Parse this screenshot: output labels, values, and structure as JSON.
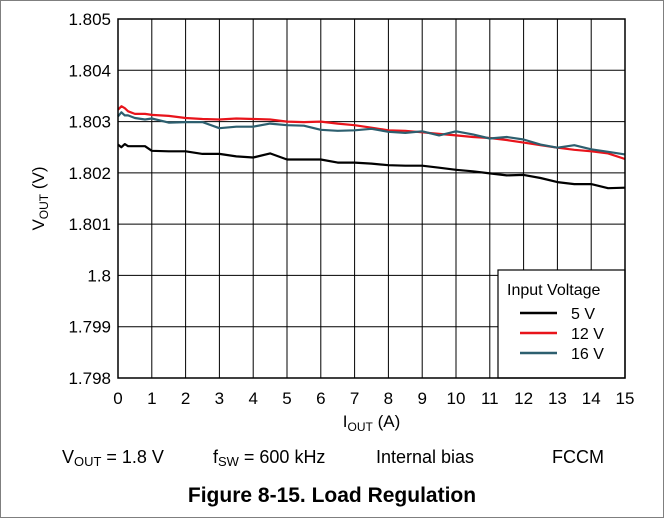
{
  "chart_data": {
    "type": "line",
    "title": "",
    "xlabel": {
      "main": "I",
      "sub": "OUT",
      "unit": " (A)"
    },
    "ylabel": {
      "main": "V",
      "sub": "OUT",
      "unit": " (V)"
    },
    "xlim": [
      0,
      15
    ],
    "ylim": [
      1.798,
      1.805
    ],
    "x_ticks": [
      0,
      1,
      2,
      3,
      4,
      5,
      6,
      7,
      8,
      9,
      10,
      11,
      12,
      13,
      14,
      15
    ],
    "x_tick_labels": [
      "0",
      "1",
      "2",
      "3",
      "4",
      "5",
      "6",
      "7",
      "8",
      "9",
      "10",
      "11",
      "12",
      "13",
      "14",
      "15"
    ],
    "y_ticks": [
      1.798,
      1.799,
      1.8,
      1.801,
      1.802,
      1.803,
      1.804,
      1.805
    ],
    "y_tick_labels": [
      "1.798",
      "1.799",
      "1.8",
      "1.801",
      "1.802",
      "1.803",
      "1.804",
      "1.805"
    ],
    "grid": true,
    "legend": {
      "title": "Input Voltage",
      "placement": "bottom-right"
    },
    "series": [
      {
        "name": "5 V",
        "color": "#000000",
        "x": [
          0,
          0.1,
          0.2,
          0.3,
          0.5,
          0.8,
          1,
          1.5,
          2,
          2.5,
          3,
          3.5,
          4,
          4.5,
          5,
          5.5,
          6,
          6.5,
          7,
          7.5,
          8,
          8.5,
          9,
          9.5,
          10,
          10.5,
          11,
          11.5,
          12,
          12.5,
          13,
          13.5,
          14,
          14.5,
          15
        ],
        "values": [
          1.80255,
          1.8025,
          1.80256,
          1.80252,
          1.80252,
          1.80252,
          1.80243,
          1.80242,
          1.80242,
          1.80237,
          1.80237,
          1.80232,
          1.8023,
          1.80238,
          1.80226,
          1.80226,
          1.80226,
          1.8022,
          1.8022,
          1.80218,
          1.80215,
          1.80214,
          1.80214,
          1.8021,
          1.80206,
          1.80203,
          1.80199,
          1.80195,
          1.80196,
          1.8019,
          1.80182,
          1.80178,
          1.80178,
          1.8017,
          1.80171
        ]
      },
      {
        "name": "12 V",
        "color": "#e8141b",
        "x": [
          0,
          0.1,
          0.2,
          0.3,
          0.5,
          0.8,
          1,
          1.5,
          2,
          2.5,
          3,
          3.5,
          4,
          4.5,
          5,
          5.5,
          6,
          6.5,
          7,
          7.5,
          8,
          8.5,
          9,
          9.5,
          10,
          10.5,
          11,
          11.5,
          12,
          12.5,
          13,
          13.5,
          14,
          14.5,
          15
        ],
        "values": [
          1.80323,
          1.8033,
          1.80326,
          1.8032,
          1.80315,
          1.80315,
          1.80313,
          1.80311,
          1.80307,
          1.80305,
          1.80304,
          1.80306,
          1.80305,
          1.80304,
          1.803,
          1.80299,
          1.803,
          1.80296,
          1.80293,
          1.80288,
          1.80283,
          1.80282,
          1.80279,
          1.80276,
          1.80273,
          1.8027,
          1.80268,
          1.80264,
          1.80259,
          1.80254,
          1.80249,
          1.80245,
          1.80242,
          1.80238,
          1.80227
        ]
      },
      {
        "name": "16 V",
        "color": "#2d5f6f",
        "x": [
          0,
          0.1,
          0.2,
          0.3,
          0.5,
          0.8,
          1,
          1.5,
          2,
          2.5,
          3,
          3.5,
          4,
          4.5,
          5,
          5.5,
          6,
          6.5,
          7,
          7.5,
          8,
          8.5,
          9,
          9.5,
          10,
          10.5,
          11,
          11.5,
          12,
          12.5,
          13,
          13.5,
          14,
          14.5,
          15
        ],
        "values": [
          1.8031,
          1.80318,
          1.80312,
          1.80312,
          1.80307,
          1.80304,
          1.80306,
          1.80298,
          1.80299,
          1.80299,
          1.80287,
          1.8029,
          1.8029,
          1.80296,
          1.80293,
          1.80292,
          1.80284,
          1.80282,
          1.80283,
          1.80286,
          1.8028,
          1.80278,
          1.80281,
          1.80273,
          1.80281,
          1.80275,
          1.80267,
          1.8027,
          1.80265,
          1.80255,
          1.80249,
          1.80254,
          1.80246,
          1.80241,
          1.80236
        ]
      }
    ]
  },
  "conditions": {
    "vout": {
      "main": "V",
      "sub": "OUT",
      "rest": " = 1.8 V"
    },
    "fsw": {
      "main": "f",
      "sub": "SW",
      "rest": " = 600 kHz"
    },
    "bias": "Internal bias",
    "mode": "FCCM"
  },
  "caption": "Figure 8-15. Load Regulation"
}
